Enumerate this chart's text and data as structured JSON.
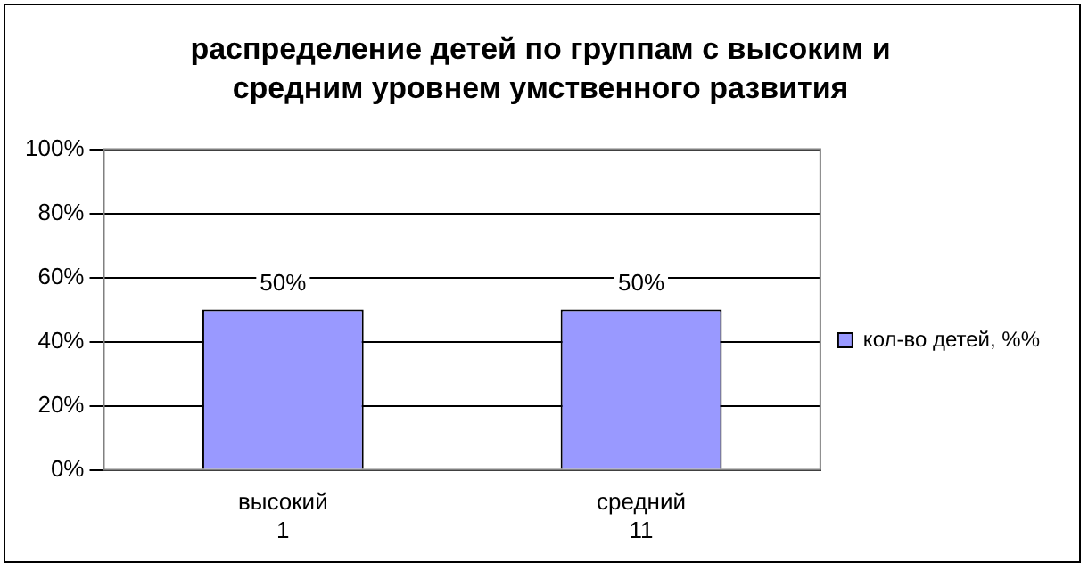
{
  "chart_data": {
    "type": "bar",
    "title": "распределение детей по группам с высоким и средним уровнем умственного развития",
    "categories": [
      "высокий\n1",
      "средний\n11"
    ],
    "series": [
      {
        "name": "кол-во детей, %%",
        "color": "#9999ff",
        "values": [
          50,
          50
        ],
        "value_labels": [
          "50%",
          "50%"
        ]
      }
    ],
    "ylim": [
      0,
      100
    ],
    "yticks": [
      {
        "value": 0,
        "label": "0%"
      },
      {
        "value": 20,
        "label": "20%"
      },
      {
        "value": 40,
        "label": "40%"
      },
      {
        "value": 60,
        "label": "60%"
      },
      {
        "value": 80,
        "label": "80%"
      },
      {
        "value": 100,
        "label": "100%"
      }
    ],
    "grid": "y",
    "legend": "right"
  }
}
